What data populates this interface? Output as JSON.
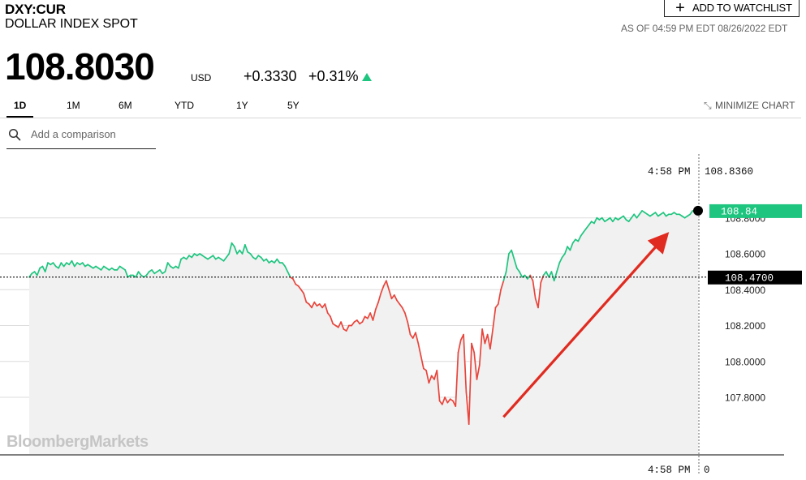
{
  "quote": {
    "ticker": "DXY:CUR",
    "name": "DOLLAR INDEX SPOT",
    "price": "108.8030",
    "currency": "USD",
    "change": "+0.3330",
    "change_pct": "+0.31%",
    "as_of": "AS OF 04:59 PM EDT 08/26/2022 EDT"
  },
  "watchlist": {
    "icon": "plus-icon",
    "label": "ADD TO WATCHLIST"
  },
  "tabs": [
    {
      "label": "1D",
      "active": true
    },
    {
      "label": "1M"
    },
    {
      "label": "6M"
    },
    {
      "label": "YTD"
    },
    {
      "label": "1Y"
    },
    {
      "label": "5Y"
    }
  ],
  "minimize": {
    "icon": "minimize-arrows-icon",
    "label": "MINIMIZE CHART"
  },
  "comparison": {
    "icon": "search-icon",
    "placeholder": "Add a comparison"
  },
  "colors": {
    "up": "#1ec57f",
    "down": "#e8453c",
    "arrow": "#e02b20",
    "area": "#f1f1f1"
  },
  "chart_data": {
    "type": "line",
    "x_label": "time",
    "ylim": [
      107.6,
      108.95
    ],
    "y_ticks": [
      "107.8000",
      "108.0000",
      "108.2000",
      "108.4000",
      "108.6000",
      "108.8000"
    ],
    "previous_close": 108.47,
    "previous_close_label": "108.4700",
    "last_value": 108.84,
    "last_value_label": "108.84",
    "crosshair": {
      "time": "4:58 PM",
      "value": "108.8360",
      "bottom_value": "0"
    },
    "watermark": "BloombergMarkets",
    "annotation": "red arrow pointing up to the latest price",
    "series": [
      {
        "values": [
          108.47,
          108.49,
          108.5,
          108.48,
          108.52,
          108.53,
          108.5,
          108.55,
          108.54,
          108.55,
          108.53,
          108.52,
          108.55,
          108.53,
          108.55,
          108.54,
          108.56,
          108.53,
          108.55,
          108.54,
          108.55,
          108.53,
          108.54,
          108.53,
          108.52,
          108.53,
          108.52,
          108.51,
          108.53,
          108.52,
          108.51,
          108.52,
          108.51,
          108.51,
          108.53,
          108.52,
          108.51,
          108.47,
          108.48,
          108.48,
          108.47,
          108.5,
          108.48,
          108.47,
          108.48,
          108.5,
          108.51,
          108.49,
          108.5,
          108.51,
          108.49,
          108.5,
          108.55,
          108.53,
          108.52,
          108.53,
          108.52,
          108.57,
          108.58,
          108.57,
          108.59,
          108.58,
          108.6,
          108.59,
          108.6,
          108.59,
          108.58,
          108.57,
          108.58,
          108.59,
          108.57,
          108.58,
          108.57,
          108.56,
          108.58,
          108.6,
          108.66,
          108.64,
          108.6,
          108.62,
          108.6,
          108.65,
          108.61,
          108.6,
          108.58,
          108.57,
          108.59,
          108.58,
          108.56,
          108.57,
          108.55,
          108.56,
          108.55,
          108.57,
          108.55,
          108.55,
          108.53,
          108.5,
          108.47,
          108.46,
          108.43,
          108.42,
          108.4,
          108.38,
          108.33,
          108.32,
          108.3,
          108.33,
          108.31,
          108.32,
          108.3,
          108.32,
          108.27,
          108.25,
          108.21,
          108.2,
          108.19,
          108.22,
          108.18,
          108.17,
          108.2,
          108.2,
          108.22,
          108.23,
          108.21,
          108.22,
          108.25,
          108.24,
          108.27,
          108.23,
          108.29,
          108.33,
          108.38,
          108.42,
          108.45,
          108.4,
          108.35,
          108.37,
          108.34,
          108.32,
          108.3,
          108.27,
          108.22,
          108.15,
          108.13,
          108.16,
          108.1,
          108.03,
          107.96,
          107.95,
          107.88,
          107.92,
          107.9,
          107.95,
          107.78,
          107.76,
          107.8,
          107.77,
          107.79,
          107.78,
          107.75,
          108.05,
          108.12,
          108.15,
          107.83,
          107.65,
          108.1,
          108.05,
          107.9,
          107.98,
          108.18,
          108.1,
          108.15,
          108.07,
          108.18,
          108.3,
          108.32,
          108.4,
          108.45,
          108.5,
          108.6,
          108.62,
          108.57,
          108.52,
          108.5,
          108.47,
          108.48,
          108.46,
          108.48,
          108.45,
          108.35,
          108.3,
          108.44,
          108.48,
          108.5,
          108.47,
          108.5,
          108.45,
          108.5,
          108.55,
          108.58,
          108.6,
          108.64,
          108.62,
          108.66,
          108.68,
          108.67,
          108.7,
          108.72,
          108.74,
          108.76,
          108.78,
          108.77,
          108.8,
          108.79,
          108.8,
          108.78,
          108.79,
          108.8,
          108.78,
          108.8,
          108.79,
          108.8,
          108.81,
          108.79,
          108.78,
          108.8,
          108.82,
          108.8,
          108.82,
          108.84,
          108.83,
          108.82,
          108.81,
          108.82,
          108.83,
          108.81,
          108.82,
          108.83,
          108.81,
          108.82,
          108.82,
          108.83,
          108.82,
          108.82,
          108.81,
          108.8,
          108.81,
          108.82,
          108.84,
          108.83,
          108.84
        ]
      }
    ]
  }
}
